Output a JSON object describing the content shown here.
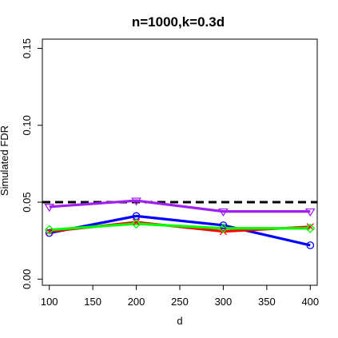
{
  "chart_data": {
    "type": "line",
    "title": "n=1000,k=0.3d",
    "xlabel": "d",
    "ylabel": "Simulated FDR",
    "xlim": [
      92,
      408
    ],
    "ylim": [
      -0.004,
      0.156
    ],
    "xticks": [
      100,
      150,
      200,
      250,
      300,
      350,
      400
    ],
    "xtick_labels": [
      "100",
      "150",
      "200",
      "250",
      "300",
      "350",
      "400"
    ],
    "yticks": [
      0.0,
      0.05,
      0.1,
      0.15
    ],
    "ytick_labels": [
      "0.00",
      "0.05",
      "0.10",
      "0.15"
    ],
    "grid": false,
    "reference_line": {
      "y": 0.05,
      "style": "dashed",
      "color": "#000000"
    },
    "x": [
      100,
      200,
      300,
      400
    ],
    "series": [
      {
        "color": "#0000ff",
        "marker": "circle",
        "values": [
          0.03,
          0.041,
          0.035,
          0.022
        ]
      },
      {
        "color": "#ff0000",
        "marker": "x",
        "values": [
          0.031,
          0.037,
          0.031,
          0.034
        ]
      },
      {
        "color": "#00ff00",
        "marker": "diamond",
        "values": [
          0.032,
          0.036,
          0.033,
          0.033
        ]
      },
      {
        "color": "#a020f0",
        "marker": "triangle-down",
        "values": [
          0.047,
          0.051,
          0.044,
          0.044
        ]
      }
    ]
  }
}
